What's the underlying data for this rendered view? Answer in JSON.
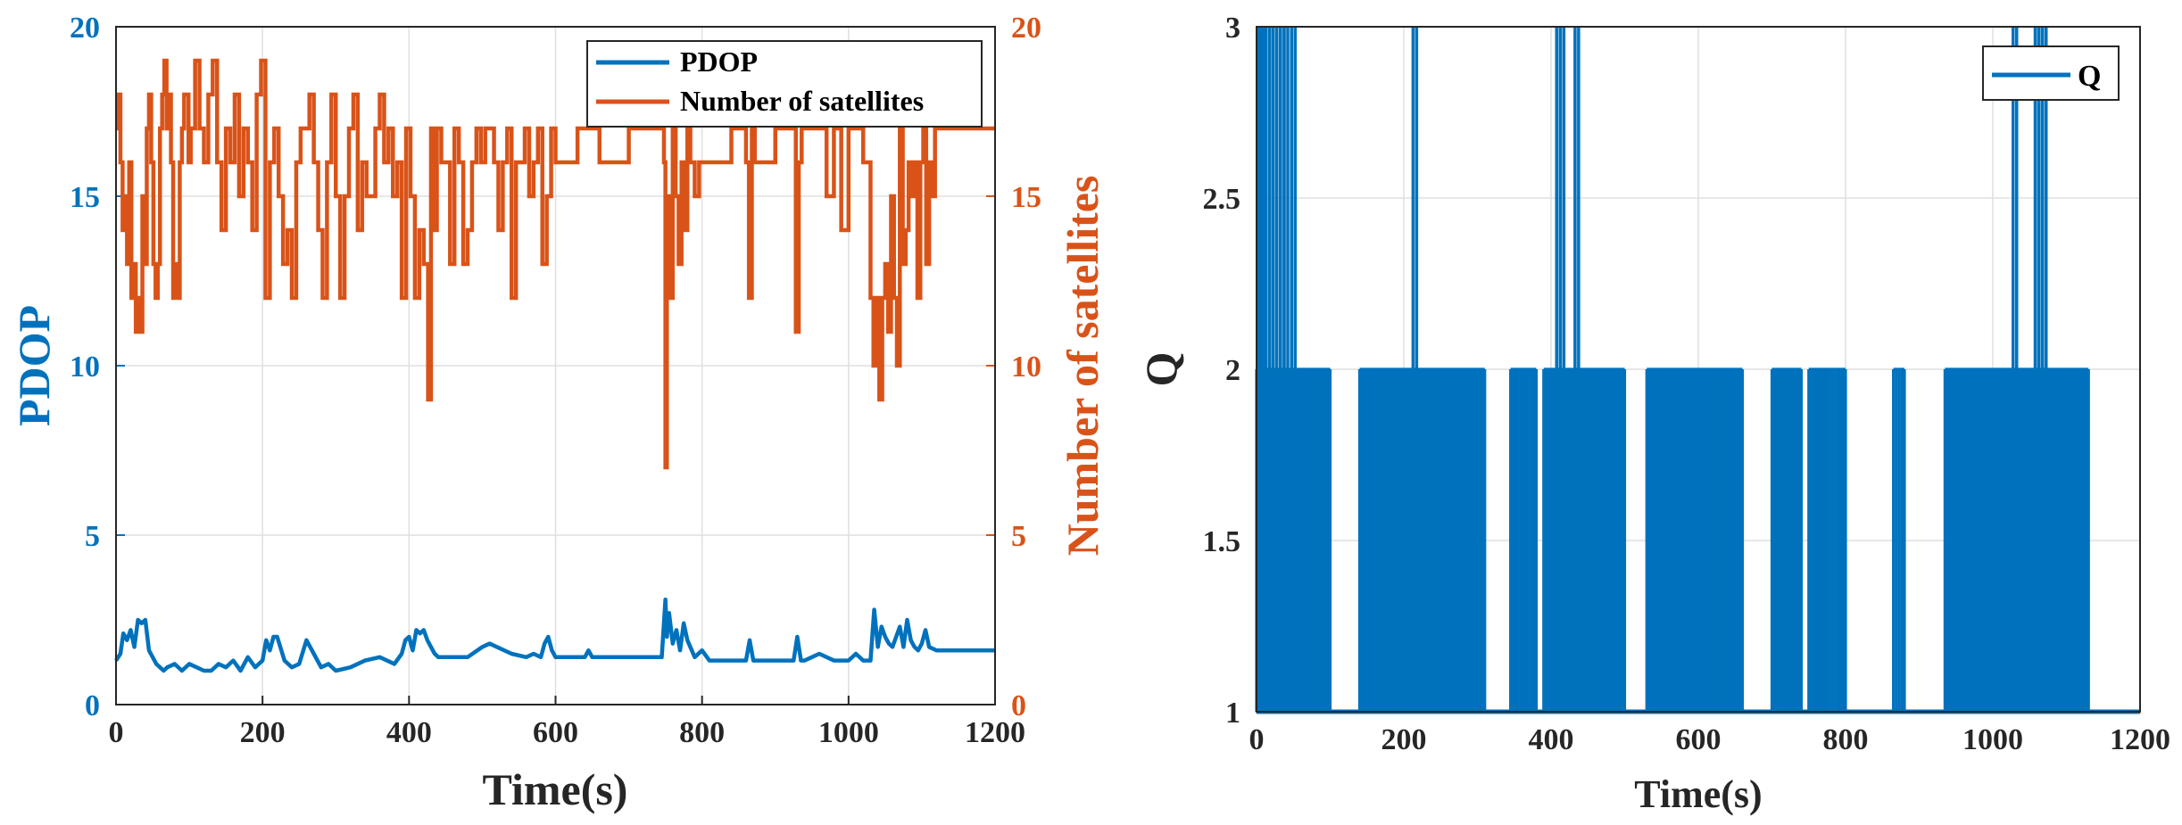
{
  "colors": {
    "pdop": "#0072BD",
    "satellites": "#D95319",
    "axis": "#262626",
    "grid": "#DFDFDF",
    "background": "#ffffff"
  },
  "chart_data": [
    {
      "type": "line",
      "xlabel": "Time(s)",
      "ylabel": "PDOP",
      "y2label": "Number of satellites",
      "xlim": [
        0,
        1200
      ],
      "ylim": [
        0,
        20
      ],
      "y2lim": [
        0,
        20
      ],
      "xticks": [
        "0",
        "200",
        "400",
        "600",
        "800",
        "1000",
        "1200"
      ],
      "yticks": [
        "0",
        "5",
        "10",
        "15",
        "20"
      ],
      "y2ticks": [
        "0",
        "5",
        "10",
        "15",
        "20"
      ],
      "grid": true,
      "legend_position": "top-right",
      "series": [
        {
          "name": "PDOP",
          "axis": "left",
          "color": "#0072BD",
          "x": [
            0,
            6,
            10,
            15,
            20,
            25,
            30,
            35,
            40,
            45,
            50,
            55,
            60,
            65,
            70,
            80,
            90,
            100,
            110,
            120,
            130,
            140,
            150,
            160,
            170,
            180,
            190,
            200,
            205,
            210,
            215,
            220,
            230,
            240,
            250,
            260,
            270,
            280,
            290,
            300,
            320,
            340,
            360,
            380,
            390,
            395,
            400,
            405,
            410,
            415,
            420,
            425,
            430,
            435,
            440,
            460,
            480,
            500,
            510,
            520,
            540,
            560,
            570,
            580,
            585,
            590,
            595,
            600,
            620,
            640,
            645,
            650,
            700,
            745,
            750,
            752,
            755,
            760,
            765,
            770,
            775,
            780,
            790,
            800,
            810,
            840,
            860,
            865,
            870,
            900,
            925,
            930,
            935,
            940,
            960,
            980,
            990,
            1000,
            1010,
            1020,
            1030,
            1035,
            1040,
            1045,
            1050,
            1055,
            1060,
            1065,
            1070,
            1075,
            1080,
            1085,
            1090,
            1095,
            1100,
            1105,
            1110,
            1120,
            1200
          ],
          "y": [
            1.3,
            1.5,
            2.1,
            1.9,
            2.2,
            1.7,
            2.5,
            2.4,
            2.5,
            1.6,
            1.4,
            1.2,
            1.1,
            1.0,
            1.1,
            1.2,
            1.0,
            1.2,
            1.1,
            1.0,
            1.0,
            1.2,
            1.1,
            1.3,
            1.0,
            1.4,
            1.1,
            1.3,
            1.9,
            1.6,
            2.0,
            2.0,
            1.3,
            1.1,
            1.2,
            1.9,
            1.5,
            1.1,
            1.2,
            1.0,
            1.1,
            1.3,
            1.4,
            1.2,
            1.5,
            1.9,
            2.0,
            1.6,
            2.2,
            2.1,
            2.2,
            1.9,
            1.7,
            1.5,
            1.4,
            1.4,
            1.4,
            1.7,
            1.8,
            1.7,
            1.5,
            1.4,
            1.5,
            1.4,
            1.8,
            2.0,
            1.6,
            1.4,
            1.4,
            1.4,
            1.6,
            1.4,
            1.4,
            1.4,
            3.1,
            2.0,
            2.7,
            1.8,
            2.2,
            1.6,
            2.4,
            1.9,
            1.4,
            1.6,
            1.3,
            1.3,
            1.3,
            1.9,
            1.3,
            1.3,
            1.3,
            2.0,
            1.3,
            1.3,
            1.5,
            1.3,
            1.3,
            1.3,
            1.5,
            1.3,
            1.3,
            2.8,
            1.7,
            2.3,
            2.0,
            1.8,
            1.7,
            2.0,
            2.3,
            1.7,
            2.5,
            1.9,
            1.7,
            1.6,
            1.8,
            2.2,
            1.7,
            1.6,
            1.6
          ]
        },
        {
          "name": "Number of satellites",
          "axis": "right",
          "color": "#D95319",
          "x": [
            0,
            3,
            6,
            9,
            12,
            15,
            18,
            21,
            24,
            27,
            30,
            33,
            36,
            39,
            42,
            45,
            48,
            51,
            54,
            57,
            60,
            63,
            66,
            69,
            72,
            75,
            78,
            81,
            84,
            87,
            90,
            93,
            96,
            99,
            102,
            108,
            114,
            120,
            126,
            132,
            138,
            144,
            150,
            156,
            162,
            168,
            174,
            180,
            186,
            192,
            198,
            204,
            210,
            216,
            222,
            228,
            234,
            240,
            246,
            252,
            258,
            264,
            270,
            276,
            282,
            288,
            294,
            300,
            306,
            312,
            318,
            324,
            330,
            336,
            342,
            348,
            354,
            360,
            366,
            372,
            378,
            384,
            390,
            396,
            402,
            408,
            414,
            420,
            426,
            430,
            434,
            438,
            444,
            450,
            456,
            462,
            468,
            474,
            480,
            486,
            492,
            498,
            504,
            510,
            516,
            522,
            528,
            534,
            540,
            546,
            552,
            558,
            564,
            570,
            576,
            582,
            588,
            594,
            600,
            630,
            660,
            700,
            740,
            748,
            750,
            752,
            756,
            760,
            764,
            768,
            772,
            776,
            780,
            784,
            790,
            796,
            800,
            820,
            840,
            860,
            864,
            868,
            872,
            880,
            900,
            920,
            928,
            932,
            936,
            950,
            970,
            980,
            990,
            1000,
            1010,
            1020,
            1030,
            1034,
            1038,
            1042,
            1046,
            1050,
            1054,
            1058,
            1062,
            1066,
            1070,
            1074,
            1078,
            1082,
            1086,
            1090,
            1094,
            1098,
            1102,
            1106,
            1110,
            1114,
            1118,
            1125,
            1140,
            1200
          ],
          "y": [
            17,
            18,
            16,
            14,
            15,
            13,
            16,
            12,
            13,
            11,
            12,
            11,
            15,
            13,
            17,
            18,
            16,
            13,
            12,
            13,
            17,
            18,
            19,
            17,
            18,
            16,
            12,
            13,
            12,
            16,
            17,
            18,
            18,
            16,
            17,
            19,
            17,
            16,
            18,
            19,
            16,
            14,
            17,
            16,
            18,
            15,
            17,
            16,
            14,
            18,
            19,
            12,
            16,
            17,
            15,
            13,
            14,
            12,
            16,
            17,
            17,
            18,
            16,
            14,
            12,
            16,
            18,
            15,
            12,
            15,
            17,
            18,
            14,
            16,
            15,
            15,
            17,
            18,
            16,
            17,
            15,
            16,
            12,
            17,
            15,
            12,
            14,
            13,
            9,
            17,
            14,
            17,
            16,
            16,
            13,
            17,
            16,
            13,
            14,
            16,
            17,
            16,
            17,
            17,
            16,
            14,
            16,
            17,
            12,
            16,
            16,
            17,
            15,
            16,
            17,
            13,
            15,
            17,
            16,
            17,
            16,
            17,
            17,
            16,
            7,
            15,
            12,
            17,
            15,
            13,
            16,
            14,
            17,
            16,
            15,
            16,
            16,
            16,
            17,
            16,
            12,
            17,
            16,
            16,
            17,
            17,
            11,
            16,
            17,
            17,
            15,
            17,
            14,
            17,
            17,
            16,
            12,
            10,
            12,
            9,
            12,
            13,
            11,
            15,
            12,
            10,
            17,
            13,
            14,
            16,
            15,
            16,
            12,
            16,
            17,
            13,
            16,
            15,
            17,
            17,
            17,
            17
          ]
        }
      ]
    },
    {
      "type": "line",
      "xlabel": "Time(s)",
      "ylabel": "Q",
      "xlim": [
        0,
        1200
      ],
      "ylim": [
        1,
        3
      ],
      "xticks": [
        "0",
        "200",
        "400",
        "600",
        "800",
        "1000",
        "1200"
      ],
      "yticks": [
        "1",
        "1.5",
        "2",
        "2.5",
        "3"
      ],
      "grid": true,
      "legend_position": "top-right",
      "series": [
        {
          "name": "Q",
          "color": "#0072BD",
          "dense_segments": [
            {
              "x": [
                0,
                100
              ],
              "level": 2,
              "n": 30
            },
            {
              "x": [
                140,
                310
              ],
              "level": 2,
              "n": 55
            },
            {
              "x": [
                345,
                380
              ],
              "level": 2,
              "n": 10
            },
            {
              "x": [
                390,
                500
              ],
              "level": 2,
              "n": 40
            },
            {
              "x": [
                530,
                660
              ],
              "level": 2,
              "n": 45
            },
            {
              "x": [
                700,
                740
              ],
              "level": 2,
              "n": 12
            },
            {
              "x": [
                750,
                800
              ],
              "level": 2,
              "n": 14
            },
            {
              "x": [
                865,
                880
              ],
              "level": 2,
              "n": 4
            },
            {
              "x": [
                935,
                1130
              ],
              "level": 2,
              "n": 60
            }
          ],
          "spikes": [
            5,
            8,
            15,
            20,
            25,
            30,
            35,
            40,
            50,
            215,
            410,
            415,
            435,
            1030,
            1060,
            1065,
            1070
          ]
        }
      ]
    }
  ]
}
